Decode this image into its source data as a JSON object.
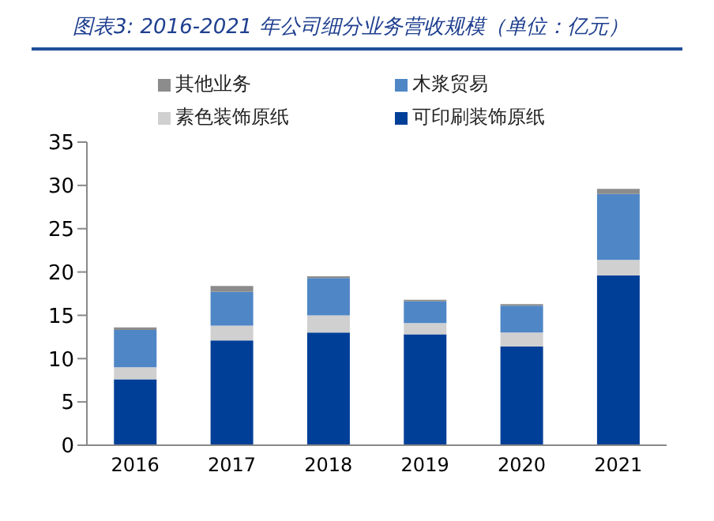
{
  "chart_data": {
    "type": "bar",
    "title": "图表3: 2016-2021 年公司细分业务营收规模（单位：亿元）",
    "categories": [
      "2016",
      "2017",
      "2018",
      "2019",
      "2020",
      "2021"
    ],
    "stacked": true,
    "series": [
      {
        "name": "可印刷装饰原纸",
        "color": "#003f98",
        "values": [
          7.6,
          12.1,
          13.0,
          12.8,
          11.4,
          19.6
        ]
      },
      {
        "name": "素色装饰原纸",
        "color": "#d0d0d0",
        "values": [
          1.4,
          1.7,
          2.0,
          1.3,
          1.6,
          1.8
        ]
      },
      {
        "name": "木浆贸易",
        "color": "#4f86c6",
        "values": [
          4.3,
          3.9,
          4.3,
          2.5,
          3.1,
          7.6
        ]
      },
      {
        "name": "其他业务",
        "color": "#8c8c8c",
        "values": [
          0.3,
          0.7,
          0.2,
          0.2,
          0.2,
          0.6
        ]
      }
    ],
    "ylim": [
      0,
      35
    ],
    "yticks": [
      0,
      5,
      10,
      15,
      20,
      25,
      30,
      35
    ],
    "grid": false,
    "legend": "top"
  }
}
